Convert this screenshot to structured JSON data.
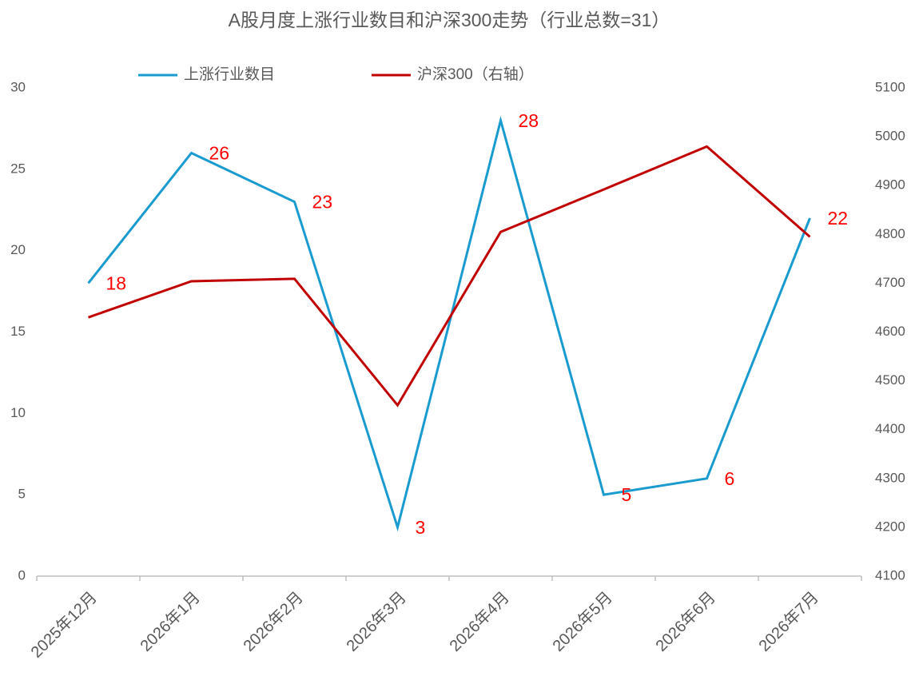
{
  "chart_data": {
    "type": "line",
    "title": "A股月度上涨行业数目和沪深300走势（行业总数=31）",
    "categories": [
      "2025年12月",
      "2026年1月",
      "2026年2月",
      "2026年3月",
      "2026年4月",
      "2026年5月",
      "2026年6月",
      "2026年7月"
    ],
    "series": [
      {
        "name": "上涨行业数目",
        "color": "#1a9bd0",
        "values": [
          18,
          26,
          23,
          3,
          28,
          5,
          6,
          22
        ],
        "data_labels": true,
        "label_color": "#ff0000"
      },
      {
        "name": "沪深300（右轴）",
        "color": "#c00000",
        "axis": "y2",
        "values": [
          4630,
          4704,
          4709,
          4450,
          4805,
          4892,
          4980,
          4795
        ]
      }
    ],
    "ylim": [
      0,
      30
    ],
    "yticks": [
      0,
      5,
      10,
      15,
      20,
      25,
      30
    ],
    "y2lim": [
      4100,
      5100
    ],
    "y2ticks": [
      4100,
      4200,
      4300,
      4400,
      4500,
      4600,
      4700,
      4800,
      4900,
      5000,
      5100
    ],
    "grid": false,
    "legend": "top"
  }
}
